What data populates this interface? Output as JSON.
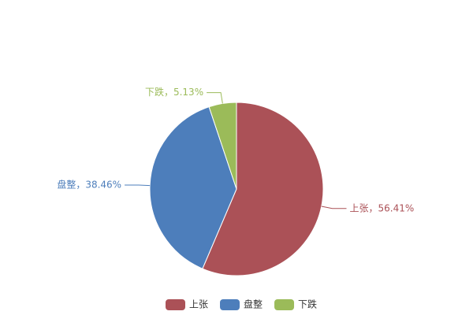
{
  "chart_data": {
    "type": "pie",
    "categories": [
      "上张",
      "盘整",
      "下跌"
    ],
    "values": [
      56.41,
      38.46,
      5.13
    ],
    "value_labels": [
      "上张，56.41%",
      "盘整，38.46%",
      "下跌，5.13%"
    ],
    "colors": [
      "#ab5157",
      "#4d7ebb",
      "#9bbb59"
    ],
    "legend": "bottom"
  }
}
